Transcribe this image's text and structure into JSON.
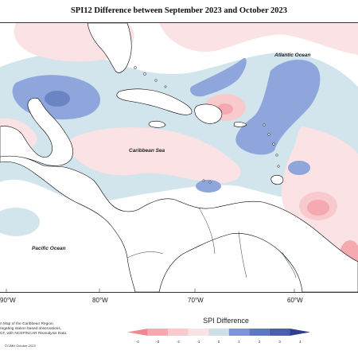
{
  "title": "SPI12 Difference between September 2023 and October 2023",
  "map": {
    "labels": {
      "atlantic": "Atlantic Ocean",
      "caribbean": "Caribbean Sea",
      "pacific": "Pacific Ocean"
    },
    "longitude_ticks": [
      "90°W",
      "80°W",
      "70°W",
      "60°W"
    ]
  },
  "footnote": {
    "lines": [
      "n Map of the Caribbean Region",
      "regating station based observations,",
      "CF, with NCEP/NCAR Reanalysis Data."
    ],
    "copyright": "©CIMH October-2023"
  },
  "legend": {
    "title": "SPI Difference",
    "ticks": [
      "-4",
      "-3",
      "-2",
      "-1",
      "0",
      "1",
      "2",
      "3",
      "4"
    ],
    "colors": [
      "#f08890",
      "#f4aab0",
      "#f8cacd",
      "#fbe2e4",
      "#cde0e8",
      "#7e93d8",
      "#5d77c8",
      "#4a5fb0",
      "#2e3f8f"
    ]
  }
}
